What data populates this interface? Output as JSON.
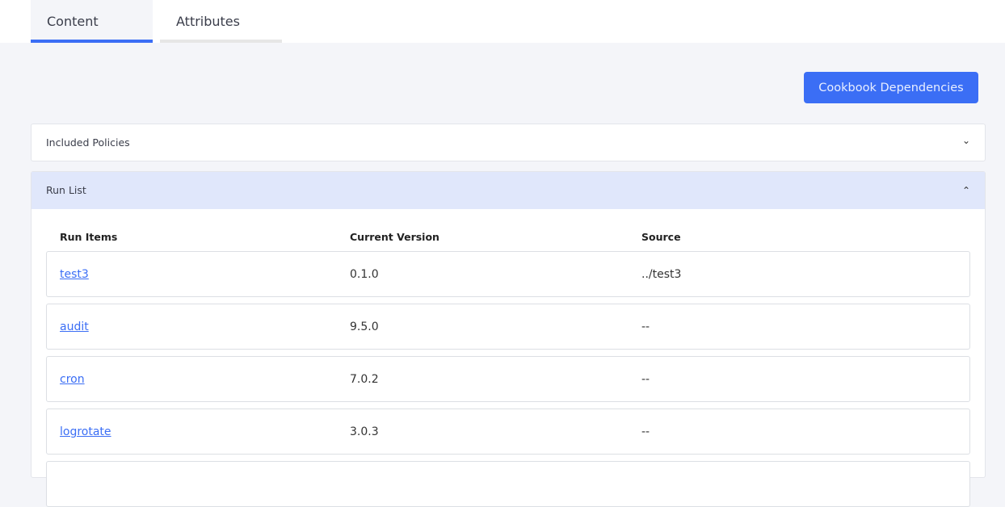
{
  "tabs": [
    {
      "label": "Content",
      "active": true
    },
    {
      "label": "Attributes",
      "active": false
    }
  ],
  "toolbar": {
    "cookbook_dependencies": "Cookbook Dependencies"
  },
  "included_policies": {
    "title": "Included Policies",
    "icon": "chevron-down-icon"
  },
  "run_list": {
    "title": "Run List",
    "icon": "chevron-up-icon",
    "columns": [
      "Run Items",
      "Current Version",
      "Source"
    ],
    "rows": [
      {
        "item": "test3",
        "version": "0.1.0",
        "source": "../test3"
      },
      {
        "item": "audit",
        "version": "9.5.0",
        "source": "--"
      },
      {
        "item": "cron",
        "version": "7.0.2",
        "source": "--"
      },
      {
        "item": "logrotate",
        "version": "3.0.3",
        "source": "--"
      }
    ]
  },
  "colors": {
    "accent": "#3b6ef5",
    "run_list_header": "#e0e7fb",
    "background": "#f4f5f9"
  }
}
